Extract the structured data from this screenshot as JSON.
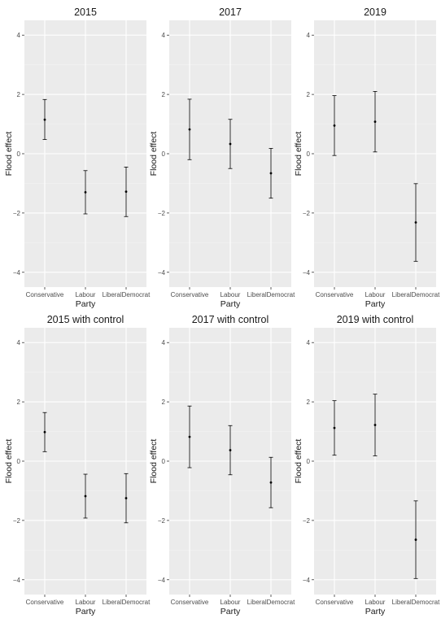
{
  "chart_data": [
    {
      "type": "errorbar",
      "title": "2015",
      "xlabel": "Party",
      "ylabel": "Flood effect",
      "categories": [
        "Conservative",
        "Labour",
        "LiberalDemocrat"
      ],
      "estimate": [
        1.15,
        -1.3,
        -1.28
      ],
      "lower": [
        0.48,
        -2.03,
        -2.12
      ],
      "upper": [
        1.83,
        -0.57,
        -0.45
      ],
      "ylim": [
        -4.5,
        4.5
      ],
      "yticks": [
        -4,
        -2,
        0,
        2,
        4
      ],
      "grid": true
    },
    {
      "type": "errorbar",
      "title": "2017",
      "xlabel": "Party",
      "ylabel": "Flood effect",
      "categories": [
        "Conservative",
        "Labour",
        "LiberalDemocrat"
      ],
      "estimate": [
        0.82,
        0.33,
        -0.66
      ],
      "lower": [
        -0.2,
        -0.5,
        -1.5
      ],
      "upper": [
        1.84,
        1.16,
        0.18
      ],
      "ylim": [
        -4.5,
        4.5
      ],
      "yticks": [
        -4,
        -2,
        0,
        2,
        4
      ],
      "grid": true
    },
    {
      "type": "errorbar",
      "title": "2019",
      "xlabel": "Party",
      "ylabel": "Flood effect",
      "categories": [
        "Conservative",
        "Labour",
        "LiberalDemocrat"
      ],
      "estimate": [
        0.95,
        1.08,
        -2.32
      ],
      "lower": [
        -0.06,
        0.06,
        -3.63
      ],
      "upper": [
        1.96,
        2.1,
        -1.01
      ],
      "ylim": [
        -4.5,
        4.5
      ],
      "yticks": [
        -4,
        -2,
        0,
        2,
        4
      ],
      "grid": true
    },
    {
      "type": "errorbar",
      "title": "2015 with control",
      "xlabel": "Party",
      "ylabel": "Flood effect",
      "categories": [
        "Conservative",
        "Labour",
        "LiberalDemocrat"
      ],
      "estimate": [
        0.98,
        -1.18,
        -1.25
      ],
      "lower": [
        0.32,
        -1.92,
        -2.08
      ],
      "upper": [
        1.64,
        -0.44,
        -0.42
      ],
      "ylim": [
        -4.5,
        4.5
      ],
      "yticks": [
        -4,
        -2,
        0,
        2,
        4
      ],
      "grid": true
    },
    {
      "type": "errorbar",
      "title": "2017 with control",
      "xlabel": "Party",
      "ylabel": "Flood effect",
      "categories": [
        "Conservative",
        "Labour",
        "LiberalDemocrat"
      ],
      "estimate": [
        0.82,
        0.37,
        -0.72
      ],
      "lower": [
        -0.22,
        -0.46,
        -1.57
      ],
      "upper": [
        1.86,
        1.2,
        0.13
      ],
      "ylim": [
        -4.5,
        4.5
      ],
      "yticks": [
        -4,
        -2,
        0,
        2,
        4
      ],
      "grid": true
    },
    {
      "type": "errorbar",
      "title": "2019 with control",
      "xlabel": "Party",
      "ylabel": "Flood effect",
      "categories": [
        "Conservative",
        "Labour",
        "LiberalDemocrat"
      ],
      "estimate": [
        1.12,
        1.22,
        -2.65
      ],
      "lower": [
        0.2,
        0.18,
        -3.96
      ],
      "upper": [
        2.04,
        2.26,
        -1.34
      ],
      "ylim": [
        -4.5,
        4.5
      ],
      "yticks": [
        -4,
        -2,
        0,
        2,
        4
      ],
      "grid": true
    }
  ],
  "colors": {
    "panel_background": "#ebebeb",
    "grid_major": "#ffffff",
    "grid_minor": "#f4f4f4",
    "marks": "#000000",
    "tick_text": "#4d4d4d",
    "label_text": "#1a1a1a"
  }
}
